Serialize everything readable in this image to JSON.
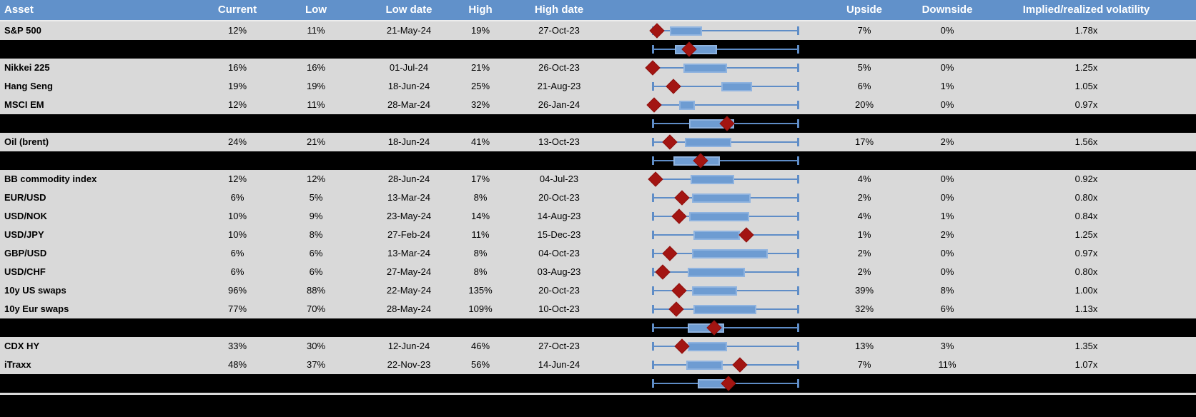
{
  "title": "Asset volatility overview table with 1-year low/high box plots",
  "colors": {
    "header_bg": "#6191CA",
    "header_text": "#FFFFFF",
    "row_bg": "#D9D9D9",
    "summary_band_bg": "#000000",
    "box_fill": "#6E9CD2",
    "box_border": "#8FB3DF",
    "whisker": "#5F8DC7",
    "diamond_marker": "#A31512"
  },
  "header": {
    "asset": "Asset",
    "current": "Current",
    "low": "Low",
    "low_date": "Low date",
    "high": "High",
    "high_date": "High date",
    "upside": "Upside",
    "downside": "Downside",
    "impl_real_vol": "Implied/realized volatility"
  },
  "chart_data": {
    "type": "table",
    "note": "Each row embeds a horizontal box-whisker plot scaled from the asset's 1y low (left whisker end) to 1y high (right whisker end); red diamond = current level; black bands are unlabeled aggregate box plots. Box/diamond positions are fractions 0-1 of the whisker span.",
    "columns": [
      "Asset",
      "Current",
      "Low",
      "Low date",
      "High",
      "High date",
      "Box plot",
      "Upside",
      "Downside",
      "Implied/realized volatility"
    ],
    "rows": [
      {
        "type": "asset",
        "asset": "S&P 500",
        "current": "12%",
        "low": "11%",
        "low_date": "21-May-24",
        "high": "19%",
        "high_date": "27-Oct-23",
        "upside": "7%",
        "downside": "0%",
        "impl_real_vol": "1.78x",
        "box": {
          "box_left": 0.12,
          "box_right": 0.34,
          "diamond": 0.03
        }
      },
      {
        "type": "summary",
        "box": {
          "box_left": 0.15,
          "box_right": 0.44,
          "diamond": 0.25
        }
      },
      {
        "type": "asset",
        "asset": "Nikkei 225",
        "current": "16%",
        "low": "16%",
        "low_date": "01-Jul-24",
        "high": "21%",
        "high_date": "26-Oct-23",
        "upside": "5%",
        "downside": "0%",
        "impl_real_vol": "1.25x",
        "box": {
          "box_left": 0.21,
          "box_right": 0.51,
          "diamond": 0.0
        }
      },
      {
        "type": "asset",
        "asset": "Hang Seng",
        "current": "19%",
        "low": "19%",
        "low_date": "18-Jun-24",
        "high": "25%",
        "high_date": "21-Aug-23",
        "upside": "6%",
        "downside": "1%",
        "impl_real_vol": "1.05x",
        "box": {
          "box_left": 0.47,
          "box_right": 0.68,
          "diamond": 0.14
        }
      },
      {
        "type": "asset",
        "asset": "MSCI EM",
        "current": "12%",
        "low": "11%",
        "low_date": "28-Mar-24",
        "high": "32%",
        "high_date": "26-Jan-24",
        "upside": "20%",
        "downside": "0%",
        "impl_real_vol": "0.97x",
        "box": {
          "box_left": 0.18,
          "box_right": 0.29,
          "diamond": 0.01
        }
      },
      {
        "type": "summary",
        "box": {
          "box_left": 0.25,
          "box_right": 0.56,
          "diamond": 0.51
        }
      },
      {
        "type": "asset",
        "asset": "Oil (brent)",
        "current": "24%",
        "low": "21%",
        "low_date": "18-Jun-24",
        "high": "41%",
        "high_date": "13-Oct-23",
        "upside": "17%",
        "downside": "2%",
        "impl_real_vol": "1.56x",
        "box": {
          "box_left": 0.22,
          "box_right": 0.54,
          "diamond": 0.12
        }
      },
      {
        "type": "summary",
        "box": {
          "box_left": 0.14,
          "box_right": 0.46,
          "diamond": 0.33
        }
      },
      {
        "type": "asset",
        "asset": "BB commodity index",
        "current": "12%",
        "low": "12%",
        "low_date": "28-Jun-24",
        "high": "17%",
        "high_date": "04-Jul-23",
        "upside": "4%",
        "downside": "0%",
        "impl_real_vol": "0.92x",
        "box": {
          "box_left": 0.26,
          "box_right": 0.56,
          "diamond": 0.02
        }
      },
      {
        "type": "asset",
        "asset": "EUR/USD",
        "current": "6%",
        "low": "5%",
        "low_date": "13-Mar-24",
        "high": "8%",
        "high_date": "20-Oct-23",
        "upside": "2%",
        "downside": "0%",
        "impl_real_vol": "0.80x",
        "box": {
          "box_left": 0.27,
          "box_right": 0.67,
          "diamond": 0.2
        }
      },
      {
        "type": "asset",
        "asset": "USD/NOK",
        "current": "10%",
        "low": "9%",
        "low_date": "23-May-24",
        "high": "14%",
        "high_date": "14-Aug-23",
        "upside": "4%",
        "downside": "1%",
        "impl_real_vol": "0.84x",
        "box": {
          "box_left": 0.25,
          "box_right": 0.66,
          "diamond": 0.18
        }
      },
      {
        "type": "asset",
        "asset": "USD/JPY",
        "current": "10%",
        "low": "8%",
        "low_date": "27-Feb-24",
        "high": "11%",
        "high_date": "15-Dec-23",
        "upside": "1%",
        "downside": "2%",
        "impl_real_vol": "1.25x",
        "box": {
          "box_left": 0.28,
          "box_right": 0.6,
          "diamond": 0.64
        }
      },
      {
        "type": "asset",
        "asset": "GBP/USD",
        "current": "6%",
        "low": "6%",
        "low_date": "13-Mar-24",
        "high": "8%",
        "high_date": "04-Oct-23",
        "upside": "2%",
        "downside": "0%",
        "impl_real_vol": "0.97x",
        "box": {
          "box_left": 0.27,
          "box_right": 0.79,
          "diamond": 0.12
        }
      },
      {
        "type": "asset",
        "asset": "USD/CHF",
        "current": "6%",
        "low": "6%",
        "low_date": "27-May-24",
        "high": "8%",
        "high_date": "03-Aug-23",
        "upside": "2%",
        "downside": "0%",
        "impl_real_vol": "0.80x",
        "box": {
          "box_left": 0.24,
          "box_right": 0.63,
          "diamond": 0.07
        }
      },
      {
        "type": "asset",
        "asset": "10y US swaps",
        "current": "96%",
        "low": "88%",
        "low_date": "22-May-24",
        "high": "135%",
        "high_date": "20-Oct-23",
        "upside": "39%",
        "downside": "8%",
        "impl_real_vol": "1.00x",
        "box": {
          "box_left": 0.27,
          "box_right": 0.58,
          "diamond": 0.18
        }
      },
      {
        "type": "asset",
        "asset": "10y Eur swaps",
        "current": "77%",
        "low": "70%",
        "low_date": "28-May-24",
        "high": "109%",
        "high_date": "10-Oct-23",
        "upside": "32%",
        "downside": "6%",
        "impl_real_vol": "1.13x",
        "box": {
          "box_left": 0.28,
          "box_right": 0.71,
          "diamond": 0.16
        }
      },
      {
        "type": "summary",
        "box": {
          "box_left": 0.24,
          "box_right": 0.49,
          "diamond": 0.42
        }
      },
      {
        "type": "asset",
        "asset": "CDX HY",
        "current": "33%",
        "low": "30%",
        "low_date": "12-Jun-24",
        "high": "46%",
        "high_date": "27-Oct-23",
        "upside": "13%",
        "downside": "3%",
        "impl_real_vol": "1.35x",
        "box": {
          "box_left": 0.24,
          "box_right": 0.51,
          "diamond": 0.2
        }
      },
      {
        "type": "asset",
        "asset": "iTraxx",
        "current": "48%",
        "low": "37%",
        "low_date": "22-Nov-23",
        "high": "56%",
        "high_date": "14-Jun-24",
        "upside": "7%",
        "downside": "11%",
        "impl_real_vol": "1.07x",
        "box": {
          "box_left": 0.23,
          "box_right": 0.48,
          "diamond": 0.6
        }
      },
      {
        "type": "summary",
        "box": {
          "box_left": 0.31,
          "box_right": 0.54,
          "diamond": 0.52
        }
      }
    ]
  }
}
